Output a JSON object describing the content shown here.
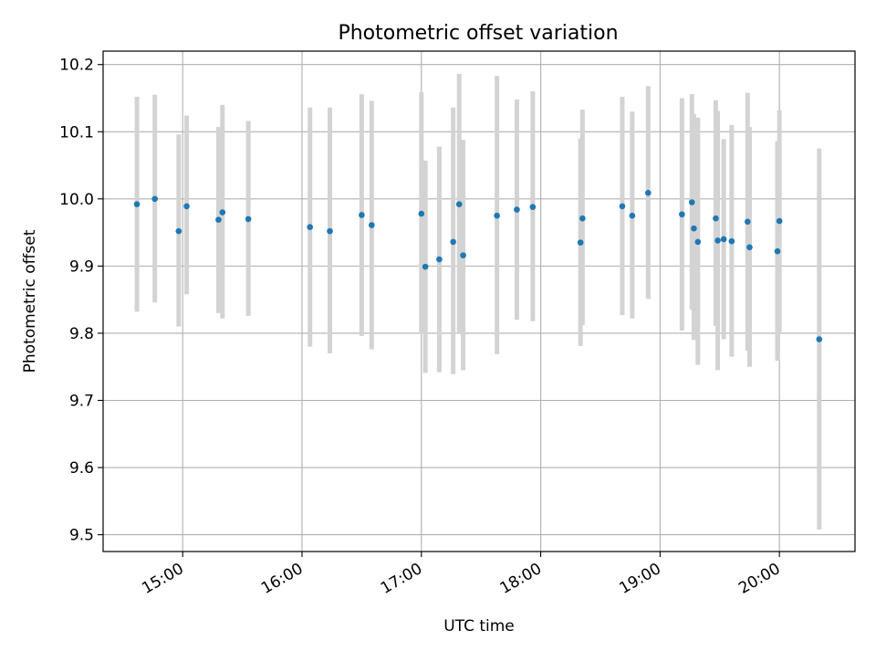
{
  "chart_data": {
    "type": "scatter",
    "title": "Photometric offset variation",
    "xlabel": "UTC time",
    "ylabel": "Photometric offset",
    "grid": true,
    "xlim": [
      "14:20",
      "20:38"
    ],
    "ylim": [
      9.475,
      10.22
    ],
    "xticks": [
      "15:00",
      "16:00",
      "17:00",
      "18:00",
      "19:00",
      "20:00"
    ],
    "yticks": [
      "9.5",
      "9.6",
      "9.7",
      "9.8",
      "9.9",
      "10.0",
      "10.1",
      "10.2"
    ],
    "colors": {
      "points": "#1f77b4",
      "errorbars": "#d3d3d3",
      "grid": "#b0b0b0"
    },
    "points": [
      {
        "x": "14:37",
        "y": 9.992,
        "ylow": 9.832,
        "yhigh": 10.152
      },
      {
        "x": "14:46",
        "y": 10.0,
        "ylow": 9.846,
        "yhigh": 10.155
      },
      {
        "x": "14:58",
        "y": 9.952,
        "ylow": 9.81,
        "yhigh": 10.096
      },
      {
        "x": "15:02",
        "y": 9.989,
        "ylow": 9.858,
        "yhigh": 10.124
      },
      {
        "x": "15:18",
        "y": 9.969,
        "ylow": 9.83,
        "yhigh": 10.107
      },
      {
        "x": "15:20",
        "y": 9.98,
        "ylow": 9.822,
        "yhigh": 10.14
      },
      {
        "x": "15:33",
        "y": 9.97,
        "ylow": 9.826,
        "yhigh": 10.116
      },
      {
        "x": "16:04",
        "y": 9.958,
        "ylow": 9.78,
        "yhigh": 10.136
      },
      {
        "x": "16:14",
        "y": 9.952,
        "ylow": 9.77,
        "yhigh": 10.136
      },
      {
        "x": "16:30",
        "y": 9.976,
        "ylow": 9.796,
        "yhigh": 10.156
      },
      {
        "x": "16:35",
        "y": 9.961,
        "ylow": 9.776,
        "yhigh": 10.146
      },
      {
        "x": "17:00",
        "y": 9.978,
        "ylow": 9.799,
        "yhigh": 10.159
      },
      {
        "x": "17:02",
        "y": 9.899,
        "ylow": 9.741,
        "yhigh": 10.057
      },
      {
        "x": "17:09",
        "y": 9.91,
        "ylow": 9.742,
        "yhigh": 10.078
      },
      {
        "x": "17:16",
        "y": 9.936,
        "ylow": 9.739,
        "yhigh": 10.136
      },
      {
        "x": "17:19",
        "y": 9.992,
        "ylow": 9.8,
        "yhigh": 10.186
      },
      {
        "x": "17:21",
        "y": 9.916,
        "ylow": 9.745,
        "yhigh": 10.088
      },
      {
        "x": "17:38",
        "y": 9.975,
        "ylow": 9.769,
        "yhigh": 10.183
      },
      {
        "x": "17:48",
        "y": 9.984,
        "ylow": 9.82,
        "yhigh": 10.148
      },
      {
        "x": "17:56",
        "y": 9.988,
        "ylow": 9.818,
        "yhigh": 10.16
      },
      {
        "x": "18:20",
        "y": 9.935,
        "ylow": 9.781,
        "yhigh": 10.09
      },
      {
        "x": "18:21",
        "y": 9.971,
        "ylow": 9.812,
        "yhigh": 10.133
      },
      {
        "x": "18:41",
        "y": 9.989,
        "ylow": 9.827,
        "yhigh": 10.152
      },
      {
        "x": "18:46",
        "y": 9.975,
        "ylow": 9.822,
        "yhigh": 10.13
      },
      {
        "x": "18:54",
        "y": 10.009,
        "ylow": 9.851,
        "yhigh": 10.168
      },
      {
        "x": "19:11",
        "y": 9.977,
        "ylow": 9.804,
        "yhigh": 10.15
      },
      {
        "x": "19:16",
        "y": 9.995,
        "ylow": 9.835,
        "yhigh": 10.156
      },
      {
        "x": "19:17",
        "y": 9.956,
        "ylow": 9.79,
        "yhigh": 10.126
      },
      {
        "x": "19:19",
        "y": 9.936,
        "ylow": 9.753,
        "yhigh": 10.121
      },
      {
        "x": "19:28",
        "y": 9.971,
        "ylow": 9.811,
        "yhigh": 10.147
      },
      {
        "x": "19:29",
        "y": 9.938,
        "ylow": 9.745,
        "yhigh": 10.131
      },
      {
        "x": "19:32",
        "y": 9.94,
        "ylow": 9.791,
        "yhigh": 10.089
      },
      {
        "x": "19:36",
        "y": 9.937,
        "ylow": 9.765,
        "yhigh": 10.11
      },
      {
        "x": "19:44",
        "y": 9.966,
        "ylow": 9.774,
        "yhigh": 10.158
      },
      {
        "x": "19:45",
        "y": 9.928,
        "ylow": 9.75,
        "yhigh": 10.107
      },
      {
        "x": "19:59",
        "y": 9.922,
        "ylow": 9.759,
        "yhigh": 10.086
      },
      {
        "x": "20:00",
        "y": 9.967,
        "ylow": 9.802,
        "yhigh": 10.132
      },
      {
        "x": "20:20",
        "y": 9.791,
        "ylow": 9.508,
        "yhigh": 10.075
      }
    ]
  }
}
